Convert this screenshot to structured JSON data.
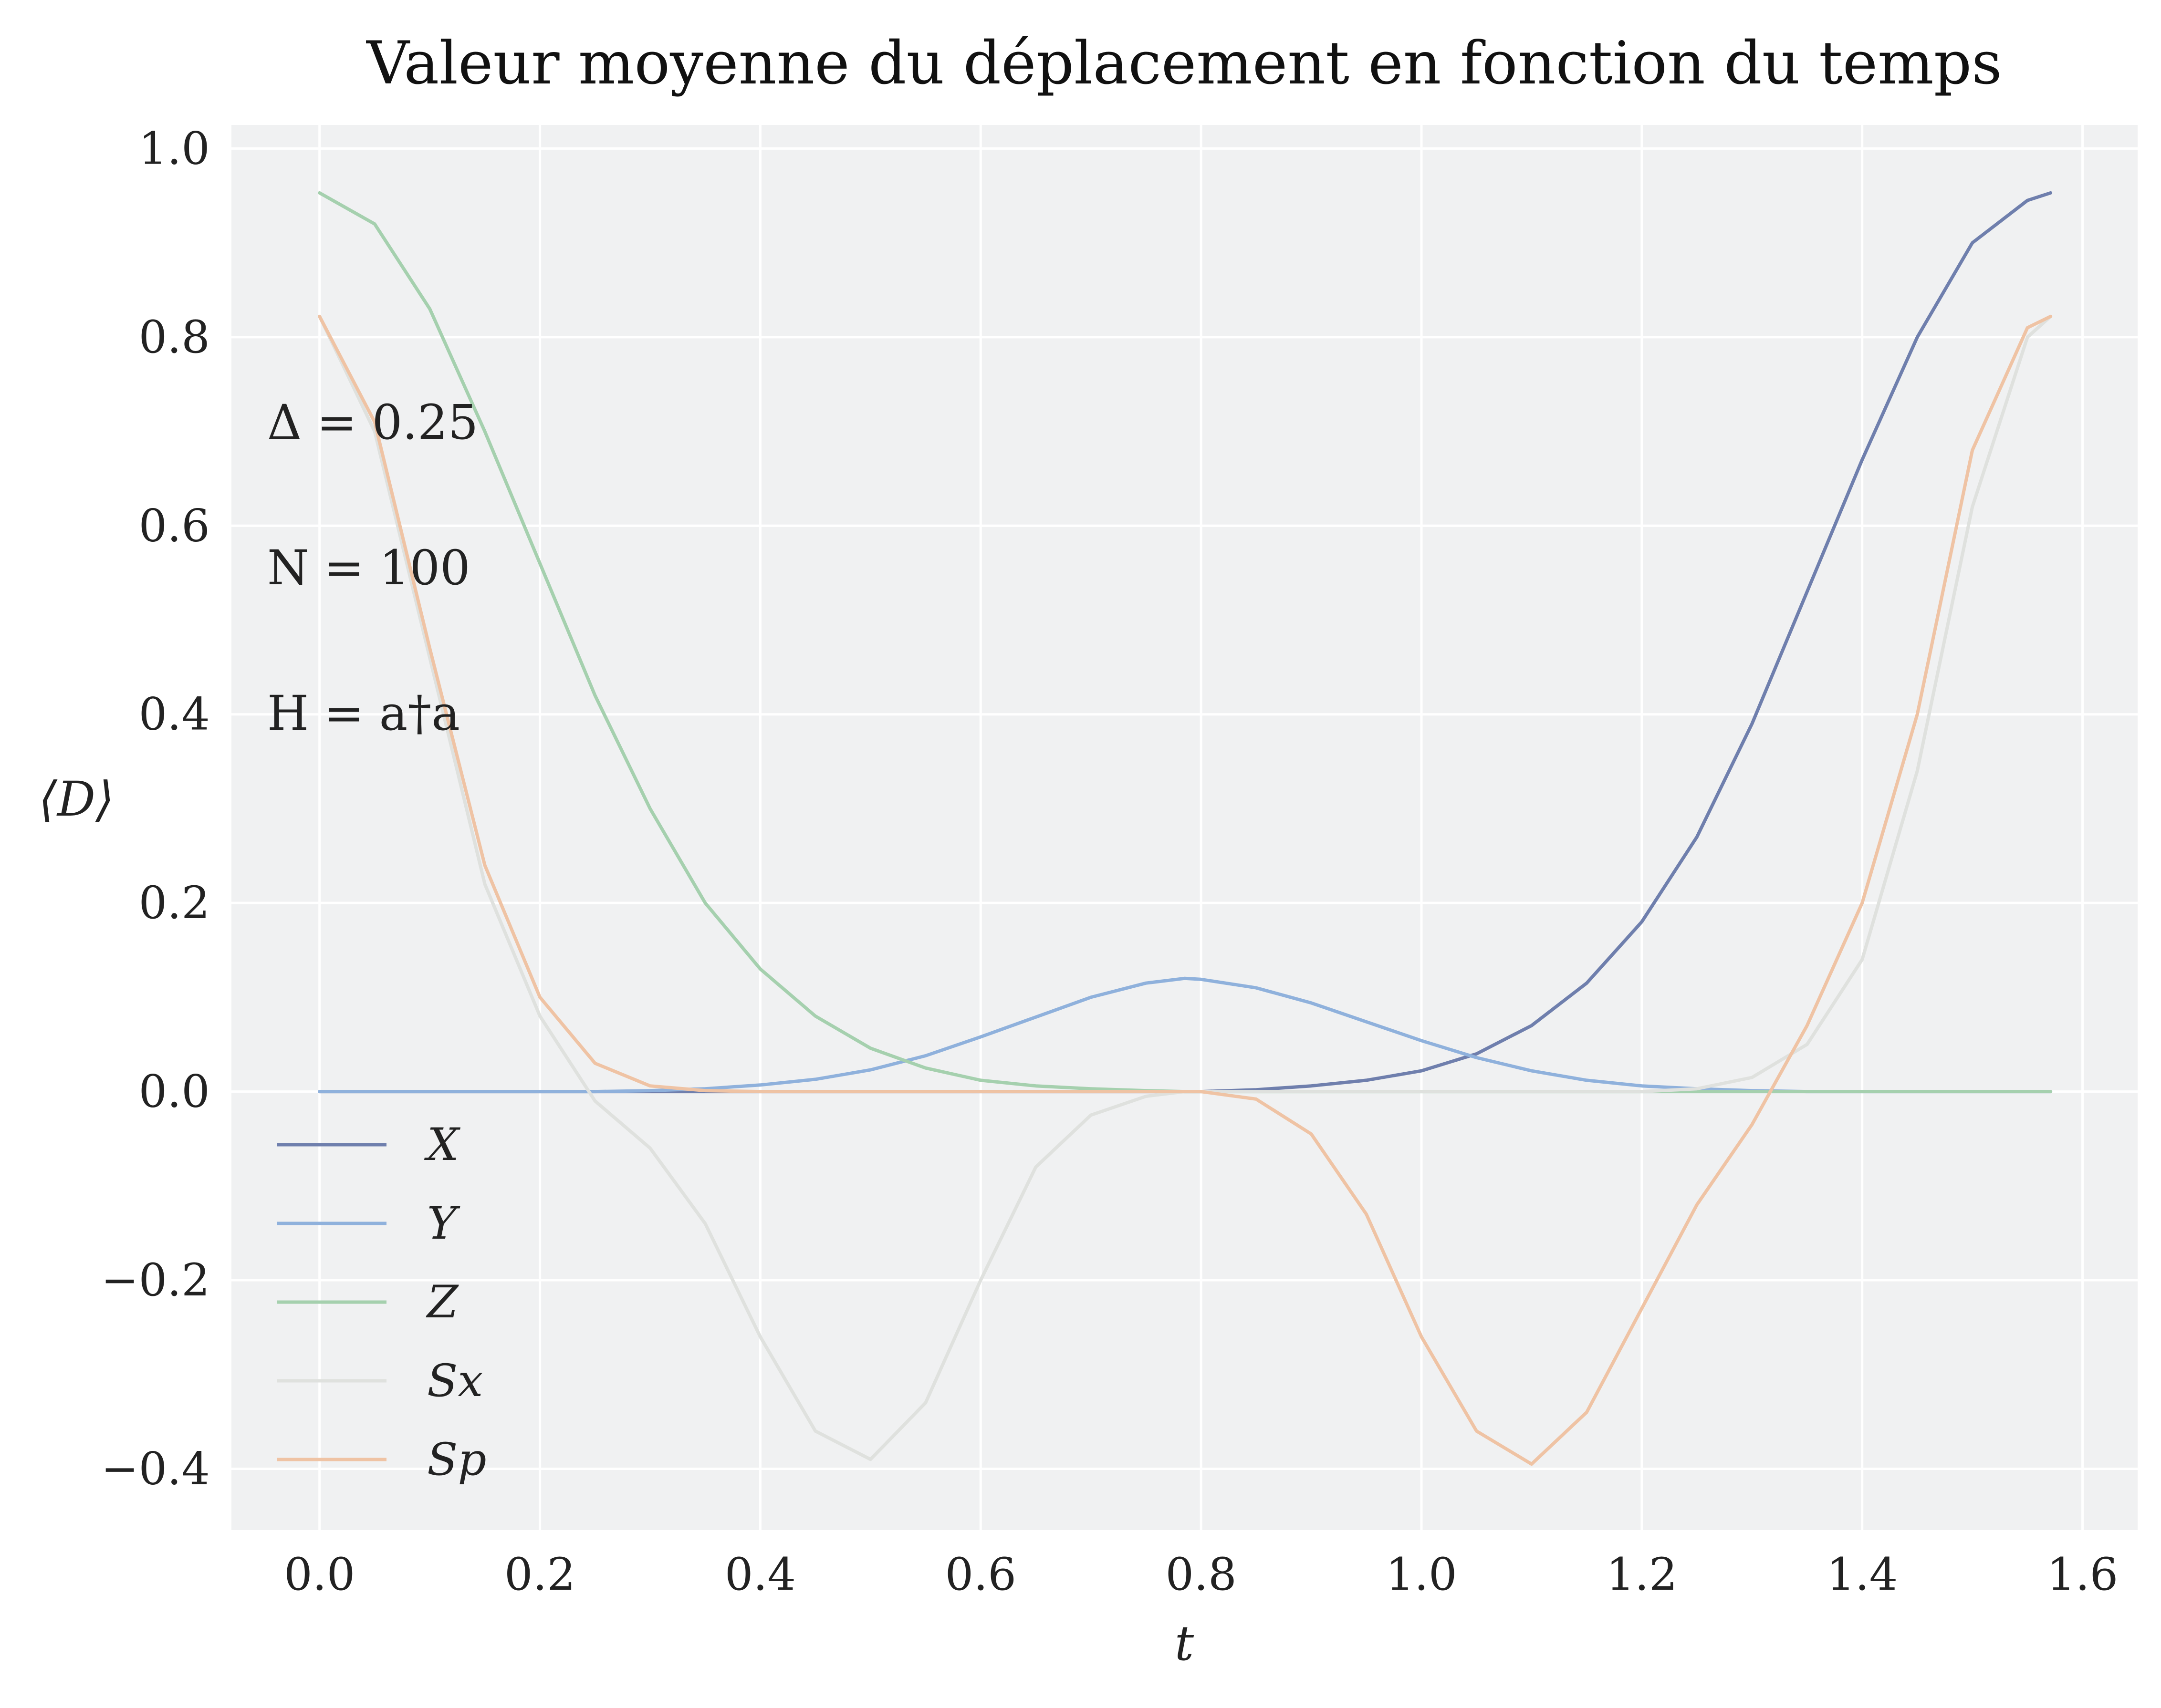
{
  "chart_data": {
    "type": "line",
    "title": "Valeur moyenne du déplacement en fonction du temps",
    "xlabel": "t",
    "ylabel": "⟨D⟩",
    "xlim": [
      -0.08,
      1.65
    ],
    "ylim": [
      -0.465,
      1.025
    ],
    "xticks": [
      0.0,
      0.2,
      0.4,
      0.6,
      0.8,
      1.0,
      1.2,
      1.4,
      1.6
    ],
    "xtick_labels": [
      "0.0",
      "0.2",
      "0.4",
      "0.6",
      "0.8",
      "1.0",
      "1.2",
      "1.4",
      "1.6"
    ],
    "yticks": [
      -0.4,
      -0.2,
      0.0,
      0.2,
      0.4,
      0.6,
      0.8,
      1.0
    ],
    "ytick_labels": [
      "−0.4",
      "−0.2",
      "0.0",
      "0.2",
      "0.4",
      "0.6",
      "0.8",
      "1.0"
    ],
    "grid": true,
    "legend_position": "lower-left",
    "annotations": [
      "Δ = 0.25",
      "N = 100",
      "H = a†a"
    ],
    "x": [
      0.0,
      0.05,
      0.1,
      0.15,
      0.2,
      0.25,
      0.3,
      0.35,
      0.4,
      0.45,
      0.5,
      0.55,
      0.6,
      0.65,
      0.7,
      0.75,
      0.785,
      0.8,
      0.85,
      0.9,
      0.95,
      1.0,
      1.05,
      1.1,
      1.15,
      1.2,
      1.25,
      1.3,
      1.35,
      1.4,
      1.45,
      1.5,
      1.55,
      1.571
    ],
    "series": [
      {
        "name": "X",
        "color": "#6f7fad",
        "values": [
          0.0,
          0.0,
          0.0,
          0.0,
          0.0,
          0.0,
          0.0,
          0.0,
          0.0,
          0.0,
          0.0,
          0.0,
          0.0,
          0.0,
          0.0,
          0.0,
          0.0,
          0.0,
          0.002,
          0.006,
          0.012,
          0.022,
          0.04,
          0.07,
          0.115,
          0.18,
          0.27,
          0.39,
          0.53,
          0.67,
          0.8,
          0.9,
          0.945,
          0.953
        ]
      },
      {
        "name": "Y",
        "color": "#8fb1dc",
        "values": [
          0.0,
          0.0,
          0.0,
          0.0,
          0.0,
          0.0,
          0.001,
          0.003,
          0.007,
          0.013,
          0.023,
          0.038,
          0.058,
          0.079,
          0.1,
          0.115,
          0.12,
          0.119,
          0.11,
          0.094,
          0.074,
          0.054,
          0.036,
          0.022,
          0.012,
          0.006,
          0.003,
          0.001,
          0.0,
          0.0,
          0.0,
          0.0,
          0.0,
          0.0
        ]
      },
      {
        "name": "Z",
        "color": "#a5d0ae",
        "values": [
          0.953,
          0.92,
          0.83,
          0.7,
          0.56,
          0.42,
          0.3,
          0.2,
          0.13,
          0.08,
          0.046,
          0.025,
          0.012,
          0.006,
          0.003,
          0.001,
          0.0,
          0.0,
          0.0,
          0.0,
          0.0,
          0.0,
          0.0,
          0.0,
          0.0,
          0.0,
          0.0,
          0.0,
          0.0,
          0.0,
          0.0,
          0.0,
          0.0,
          0.0
        ]
      },
      {
        "name": "Sx",
        "color": "#dfe1de",
        "values": [
          0.822,
          0.7,
          0.46,
          0.22,
          0.08,
          -0.01,
          -0.06,
          -0.14,
          -0.26,
          -0.36,
          -0.39,
          -0.33,
          -0.2,
          -0.08,
          -0.025,
          -0.005,
          0.0,
          0.0,
          0.0,
          0.0,
          0.0,
          0.0,
          0.0,
          0.0,
          0.0,
          0.0,
          0.003,
          0.015,
          0.05,
          0.14,
          0.34,
          0.62,
          0.8,
          0.822
        ]
      },
      {
        "name": "Sp",
        "color": "#efc3a4",
        "values": [
          0.822,
          0.71,
          0.47,
          0.24,
          0.1,
          0.03,
          0.006,
          0.001,
          0.0,
          0.0,
          0.0,
          0.0,
          0.0,
          0.0,
          0.0,
          0.0,
          0.0,
          0.0,
          -0.008,
          -0.045,
          -0.13,
          -0.26,
          -0.36,
          -0.395,
          -0.34,
          -0.23,
          -0.12,
          -0.035,
          0.07,
          0.2,
          0.4,
          0.68,
          0.81,
          0.822
        ]
      }
    ]
  }
}
